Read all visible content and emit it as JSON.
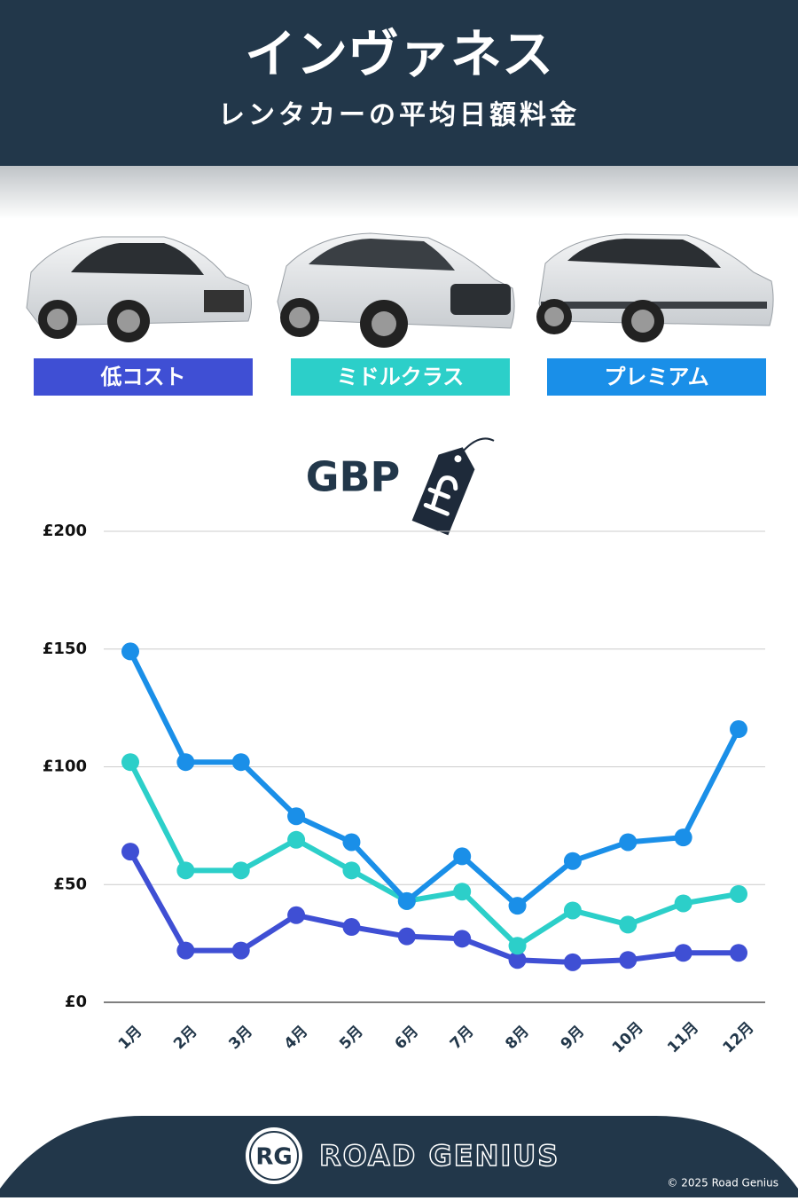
{
  "chart_data": {
    "type": "line",
    "title": "インヴァネス",
    "subtitle": "レンタカーの平均日額料金",
    "currency_label": "GBP",
    "categories": [
      "1月",
      "2月",
      "3月",
      "4月",
      "5月",
      "6月",
      "7月",
      "8月",
      "9月",
      "10月",
      "11月",
      "12月"
    ],
    "series": [
      {
        "name": "低コスト",
        "color": "#3f4fd4",
        "values": [
          64,
          22,
          22,
          37,
          32,
          28,
          27,
          18,
          17,
          18,
          21,
          21
        ]
      },
      {
        "name": "ミドルクラス",
        "color": "#2ccfc9",
        "values": [
          102,
          56,
          56,
          69,
          56,
          43,
          47,
          24,
          39,
          33,
          42,
          46
        ]
      },
      {
        "name": "プレミアム",
        "color": "#1a8fe8",
        "values": [
          149,
          102,
          102,
          79,
          68,
          43,
          62,
          41,
          60,
          68,
          70,
          116
        ]
      }
    ],
    "ylim": [
      0,
      200
    ],
    "yticks": [
      {
        "value": 0,
        "label": "£0"
      },
      {
        "value": 50,
        "label": "£50"
      },
      {
        "value": 100,
        "label": "£100"
      },
      {
        "value": 150,
        "label": "£150"
      },
      {
        "value": 200,
        "label": "£200"
      }
    ],
    "grid": true
  },
  "footer": {
    "logo": "RG",
    "brand": "ROAD GENIUS",
    "copyright": "© 2025 Road Genius"
  }
}
